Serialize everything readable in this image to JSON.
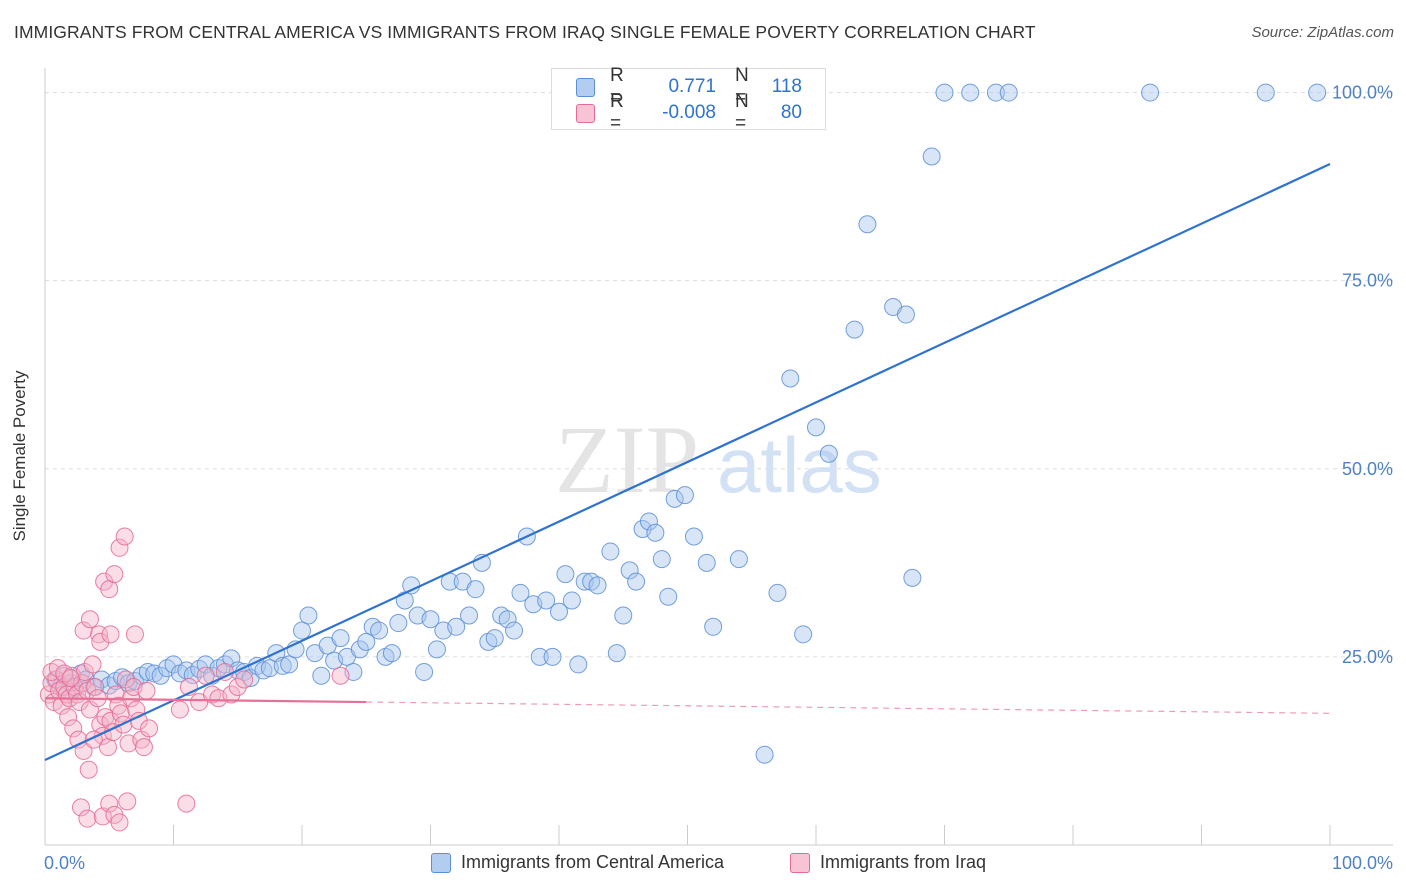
{
  "title": "IMMIGRANTS FROM CENTRAL AMERICA VS IMMIGRANTS FROM IRAQ SINGLE FEMALE POVERTY CORRELATION CHART",
  "source": "Source: ZipAtlas.com",
  "watermark": {
    "zip": "ZIP",
    "atlas": "atlas"
  },
  "colors": {
    "blue": "#5b8fd6",
    "blue_fill": "#a9c6ee",
    "blue_line": "#2f72d0",
    "pink": "#e56a95",
    "pink_fill": "#f4b3c8",
    "pink_line": "#e5709a",
    "axis_text": "#4f81c7"
  },
  "stats": {
    "rows": [
      {
        "r_label": "R =",
        "r_value": "0.771",
        "n_label": "N =",
        "n_value": "118"
      },
      {
        "r_label": "R =",
        "r_value": "-0.008",
        "n_label": "N =",
        "n_value": "80"
      }
    ]
  },
  "legend": {
    "items": [
      {
        "label": "Immigrants from Central America"
      },
      {
        "label": "Immigrants from Iraq"
      }
    ]
  },
  "chart_data": {
    "type": "scatter",
    "xlabel": "",
    "ylabel": "Single Female Poverty",
    "xlim": [
      0,
      100
    ],
    "ylim": [
      0,
      103
    ],
    "x_tick_labels": [
      "0.0%",
      "100.0%"
    ],
    "y_tick_labels": [
      "25.0%",
      "50.0%",
      "75.0%",
      "100.0%"
    ],
    "y_ticks": [
      25,
      50,
      75,
      100
    ],
    "grid": true,
    "legend_position": "bottom",
    "series": [
      {
        "name": "Immigrants from Central America",
        "trend": {
          "x": [
            0,
            100
          ],
          "y": [
            11.3,
            90.5
          ]
        },
        "points": [
          [
            0.8,
            22
          ],
          [
            1.2,
            21
          ],
          [
            1.5,
            22.5
          ],
          [
            2,
            21.5
          ],
          [
            2.3,
            20.8
          ],
          [
            2.8,
            22.8
          ],
          [
            3.2,
            22
          ],
          [
            3.8,
            21
          ],
          [
            4.4,
            22
          ],
          [
            5,
            21.2
          ],
          [
            5.5,
            21.8
          ],
          [
            6,
            22.3
          ],
          [
            6.5,
            21.5
          ],
          [
            7,
            21.8
          ],
          [
            7.5,
            22.5
          ],
          [
            8,
            23
          ],
          [
            8.5,
            22.8
          ],
          [
            9,
            22.5
          ],
          [
            9.5,
            23.5
          ],
          [
            10,
            24
          ],
          [
            10.5,
            22.8
          ],
          [
            11,
            23.2
          ],
          [
            11.5,
            22.6
          ],
          [
            12,
            23.4
          ],
          [
            12.5,
            24
          ],
          [
            13,
            22.5
          ],
          [
            13.5,
            23.5
          ],
          [
            14,
            24
          ],
          [
            14.5,
            24.8
          ],
          [
            15,
            23.2
          ],
          [
            15.5,
            23
          ],
          [
            16,
            22.2
          ],
          [
            16.5,
            23.8
          ],
          [
            17,
            23.2
          ],
          [
            17.5,
            23.5
          ],
          [
            18,
            25.5
          ],
          [
            18.5,
            23.8
          ],
          [
            19,
            24
          ],
          [
            19.5,
            26
          ],
          [
            20,
            28.5
          ],
          [
            20.5,
            30.5
          ],
          [
            21,
            25.5
          ],
          [
            21.5,
            22.5
          ],
          [
            22,
            26.5
          ],
          [
            22.5,
            24.5
          ],
          [
            23,
            27.5
          ],
          [
            23.5,
            25
          ],
          [
            24,
            23
          ],
          [
            24.5,
            26
          ],
          [
            25,
            27
          ],
          [
            25.5,
            29
          ],
          [
            26,
            28.5
          ],
          [
            26.5,
            25
          ],
          [
            27,
            25.5
          ],
          [
            27.5,
            29.5
          ],
          [
            28,
            32.5
          ],
          [
            28.5,
            34.5
          ],
          [
            29,
            30.5
          ],
          [
            29.5,
            23
          ],
          [
            30,
            30
          ],
          [
            30.5,
            26
          ],
          [
            31,
            28.5
          ],
          [
            31.5,
            35
          ],
          [
            32,
            29
          ],
          [
            32.5,
            35
          ],
          [
            33,
            30.5
          ],
          [
            33.5,
            34
          ],
          [
            34,
            37.5
          ],
          [
            34.5,
            27
          ],
          [
            35,
            27.5
          ],
          [
            35.5,
            30.5
          ],
          [
            36,
            30
          ],
          [
            36.5,
            28.5
          ],
          [
            37,
            33.5
          ],
          [
            37.5,
            41
          ],
          [
            38,
            32
          ],
          [
            38.5,
            25
          ],
          [
            39,
            32.5
          ],
          [
            39.5,
            25
          ],
          [
            40,
            31
          ],
          [
            40.5,
            36
          ],
          [
            41,
            32.5
          ],
          [
            41.5,
            24
          ],
          [
            42,
            35
          ],
          [
            42.5,
            35
          ],
          [
            43,
            34.5
          ],
          [
            44,
            39
          ],
          [
            44.5,
            25.5
          ],
          [
            45,
            30.5
          ],
          [
            45.5,
            36.5
          ],
          [
            46,
            35
          ],
          [
            46.5,
            42
          ],
          [
            47,
            43
          ],
          [
            47.5,
            41.5
          ],
          [
            48,
            38
          ],
          [
            48.5,
            33
          ],
          [
            49,
            46
          ],
          [
            49.8,
            46.5
          ],
          [
            50.5,
            41
          ],
          [
            51.5,
            37.5
          ],
          [
            52,
            29
          ],
          [
            54,
            38
          ],
          [
            56,
            12
          ],
          [
            57,
            33.5
          ],
          [
            58,
            62
          ],
          [
            59,
            28
          ],
          [
            60,
            55.5
          ],
          [
            61,
            52
          ],
          [
            63,
            68.5
          ],
          [
            64,
            82.5
          ],
          [
            66,
            71.5
          ],
          [
            67,
            70.5
          ],
          [
            67.5,
            35.5
          ],
          [
            69,
            91.5
          ],
          [
            70,
            100
          ],
          [
            72,
            100
          ],
          [
            74,
            100
          ],
          [
            75,
            100
          ],
          [
            86,
            100
          ],
          [
            95,
            100
          ],
          [
            99,
            100
          ]
        ]
      },
      {
        "name": "Immigrants from Iraq",
        "trend": {
          "x": [
            0,
            100
          ],
          "y": [
            19.5,
            17.5
          ]
        },
        "points": [
          [
            0.3,
            20
          ],
          [
            0.5,
            21.5
          ],
          [
            0.7,
            19
          ],
          [
            0.9,
            22
          ],
          [
            1.1,
            20.5
          ],
          [
            1.3,
            18.5
          ],
          [
            1.5,
            21
          ],
          [
            1.7,
            20
          ],
          [
            1.9,
            19.5
          ],
          [
            2.1,
            22.5
          ],
          [
            2.3,
            21
          ],
          [
            2.5,
            20
          ],
          [
            2.7,
            19
          ],
          [
            2.9,
            21.5
          ],
          [
            3.1,
            23
          ],
          [
            3.3,
            20.5
          ],
          [
            3.5,
            18
          ],
          [
            3.7,
            24
          ],
          [
            3.9,
            21
          ],
          [
            4.1,
            19.5
          ],
          [
            4.3,
            16
          ],
          [
            4.5,
            14.5
          ],
          [
            4.7,
            17
          ],
          [
            4.9,
            13
          ],
          [
            5.1,
            16.5
          ],
          [
            5.3,
            15
          ],
          [
            5.5,
            20
          ],
          [
            5.7,
            18.5
          ],
          [
            5.9,
            17.5
          ],
          [
            6.1,
            16
          ],
          [
            6.3,
            22
          ],
          [
            6.5,
            13.5
          ],
          [
            6.7,
            19.5
          ],
          [
            6.9,
            21
          ],
          [
            7.1,
            18
          ],
          [
            7.3,
            16.5
          ],
          [
            7.5,
            14
          ],
          [
            7.7,
            13
          ],
          [
            7.9,
            20.5
          ],
          [
            8.1,
            15.5
          ],
          [
            0.5,
            23
          ],
          [
            1.0,
            23.5
          ],
          [
            1.5,
            22.8
          ],
          [
            2.0,
            22.2
          ],
          [
            1.8,
            17
          ],
          [
            2.2,
            15.5
          ],
          [
            2.6,
            14
          ],
          [
            3.0,
            12.5
          ],
          [
            3.4,
            10
          ],
          [
            3.8,
            14
          ],
          [
            4.2,
            28
          ],
          [
            4.6,
            35
          ],
          [
            5.0,
            34
          ],
          [
            5.4,
            36
          ],
          [
            5.8,
            39.5
          ],
          [
            6.2,
            41
          ],
          [
            3.0,
            28.5
          ],
          [
            3.5,
            30
          ],
          [
            4.3,
            27
          ],
          [
            5.1,
            28
          ],
          [
            7.0,
            28
          ],
          [
            2.8,
            5
          ],
          [
            3.3,
            3.5
          ],
          [
            4.5,
            3.8
          ],
          [
            5.0,
            5.5
          ],
          [
            5.4,
            4
          ],
          [
            5.8,
            3
          ],
          [
            6.4,
            5.8
          ],
          [
            11,
            5.5
          ],
          [
            10.5,
            18
          ],
          [
            11.2,
            21
          ],
          [
            12,
            19
          ],
          [
            12.5,
            22.5
          ],
          [
            13,
            20
          ],
          [
            13.5,
            19.5
          ],
          [
            14,
            23
          ],
          [
            14.5,
            20
          ],
          [
            15,
            21
          ],
          [
            15.5,
            22
          ],
          [
            23,
            22.5
          ]
        ]
      }
    ]
  }
}
